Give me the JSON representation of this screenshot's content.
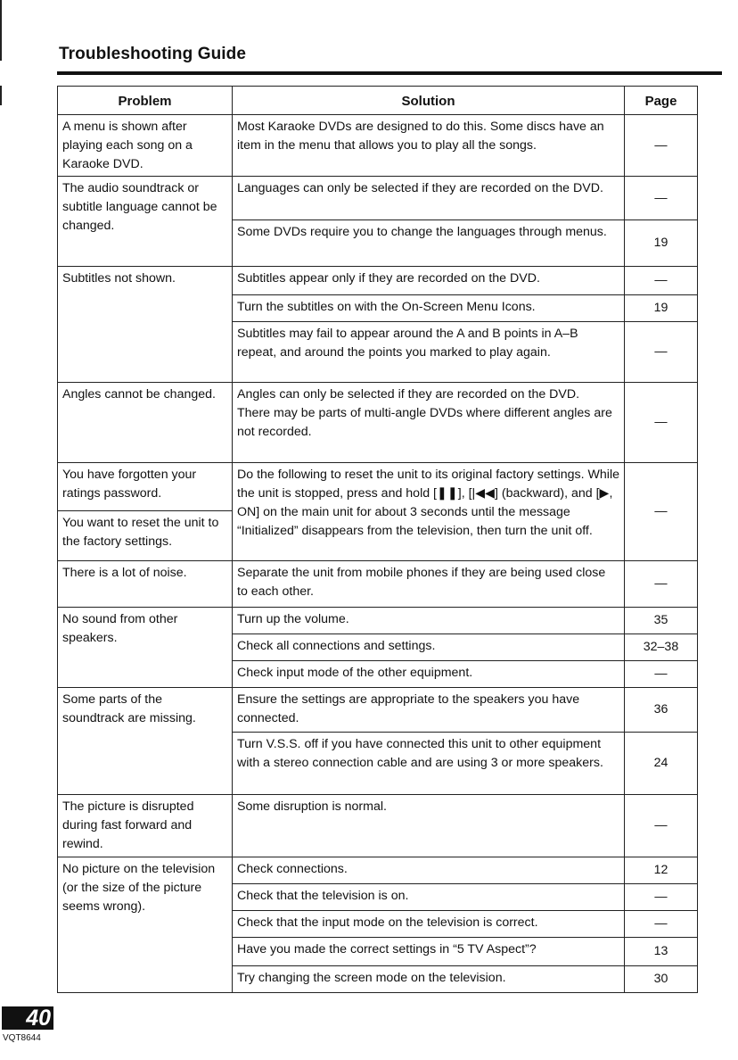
{
  "header": {
    "title": "Troubleshooting Guide"
  },
  "table": {
    "columns": [
      "Problem",
      "Solution",
      "Page"
    ],
    "groups": [
      {
        "problems": [
          "A menu is shown after playing each song on a Karaoke DVD."
        ],
        "solutions": [
          {
            "text": "Most Karaoke DVDs are designed to do this. Some discs have an item in the menu that allows you to play all the songs.",
            "page": "—"
          }
        ]
      },
      {
        "problems": [
          "The audio soundtrack or subtitle language cannot be changed."
        ],
        "solutions": [
          {
            "text": "Languages can only be selected if they are recorded on the DVD.",
            "page": "—"
          },
          {
            "text": "Some DVDs require you to change the languages through menus.",
            "page": "19"
          }
        ]
      },
      {
        "problems": [
          "Subtitles not shown."
        ],
        "solutions": [
          {
            "text": "Subtitles appear only if they are recorded on the DVD.",
            "page": "—"
          },
          {
            "text": "Turn the subtitles on with the On-Screen Menu Icons.",
            "page": "19"
          },
          {
            "text": "Subtitles may fail to appear around the A and B points in A–B repeat, and around the points you marked to play again.",
            "page": "—"
          }
        ]
      },
      {
        "problems": [
          "Angles cannot be changed."
        ],
        "solutions": [
          {
            "text": "Angles can only be selected if they are recorded on the DVD.\nThere may be parts of multi-angle DVDs where different angles are not recorded.",
            "page": "—"
          }
        ]
      },
      {
        "problems": [
          "You have forgotten your ratings password.",
          "You want to reset the unit to the factory settings."
        ],
        "solutions": [
          {
            "text": "Do the following to reset the unit to its original factory settings. While the unit is stopped, press and hold [❚❚], [|◀◀] (backward), and [▶, ON] on the main unit for about 3 seconds until the message “Initialized” disappears from the television, then turn the unit off.",
            "page": "—"
          }
        ]
      },
      {
        "problems": [
          "There is a lot of noise."
        ],
        "solutions": [
          {
            "text": "Separate the unit from mobile phones if they are being used close to each other.",
            "page": "—"
          }
        ]
      },
      {
        "problems": [
          "No sound from other speakers."
        ],
        "solutions": [
          {
            "text": "Turn up the volume.",
            "page": "35"
          },
          {
            "text": "Check all connections and settings.",
            "page": "32–38"
          },
          {
            "text": "Check input mode of the other equipment.",
            "page": "—"
          }
        ]
      },
      {
        "problems": [
          "Some parts of the soundtrack are missing."
        ],
        "solutions": [
          {
            "text": "Ensure the settings are appropriate to the speakers you have connected.",
            "page": "36"
          },
          {
            "text": "Turn V.S.S. off if you have connected this unit to other equipment with a stereo connection cable and are using 3 or more speakers.",
            "page": "24"
          }
        ]
      },
      {
        "problems": [
          "The picture is disrupted during fast forward and rewind."
        ],
        "solutions": [
          {
            "text": "Some disruption is normal.",
            "page": "—"
          }
        ]
      },
      {
        "problems": [
          "No picture on the television (or the size of the picture seems wrong)."
        ],
        "solutions": [
          {
            "text": "Check connections.",
            "page": "12"
          },
          {
            "text": "Check that the television is on.",
            "page": "—"
          },
          {
            "text": "Check that the input mode on the television is correct.",
            "page": "—"
          },
          {
            "text": "Have you made the correct settings in “5 TV Aspect”?",
            "page": "13"
          },
          {
            "text": "Try changing the screen mode on the television.",
            "page": "30"
          }
        ]
      }
    ]
  },
  "footer": {
    "page_number": "40",
    "code": "VQT8644"
  }
}
